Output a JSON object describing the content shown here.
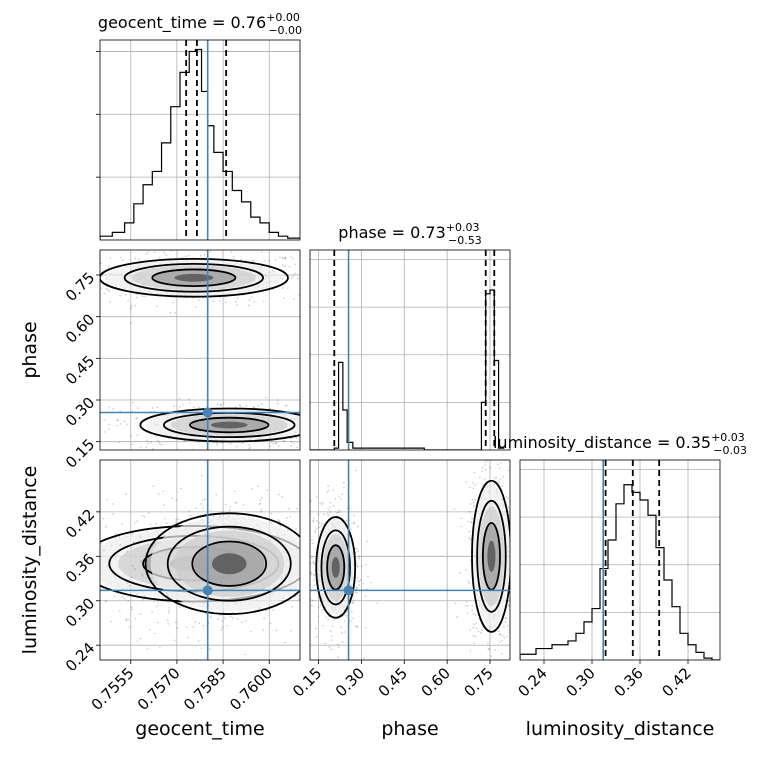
{
  "chart_data": {
    "type": "corner",
    "parameters": [
      "geocent_time",
      "phase",
      "luminosity_distance"
    ],
    "truths": {
      "geocent_time": 0.758,
      "phase": 0.255,
      "luminosity_distance": 0.314
    },
    "panels": [
      {
        "kind": "hist",
        "param": "geocent_time",
        "title": {
          "main": "geocent_time = 0.76",
          "sup": "+0.00",
          "sub": "−0.00"
        },
        "xlim": [
          0.7545,
          0.761
        ],
        "ylim": [
          0,
          1.05
        ],
        "quantiles": [
          0.7573,
          0.75765,
          0.7586
        ],
        "step_x": [
          0.7545,
          0.7549,
          0.7553,
          0.7556,
          0.7559,
          0.7562,
          0.7565,
          0.7568,
          0.7571,
          0.7574,
          0.7576,
          0.7578,
          0.758,
          0.7582,
          0.7585,
          0.7588,
          0.7591,
          0.7594,
          0.7597,
          0.76,
          0.7603,
          0.7606,
          0.761
        ],
        "step_y": [
          0.02,
          0.04,
          0.09,
          0.19,
          0.29,
          0.36,
          0.51,
          0.7,
          0.88,
          0.99,
          1.0,
          0.78,
          0.6,
          0.46,
          0.36,
          0.26,
          0.2,
          0.12,
          0.09,
          0.04,
          0.02,
          0.01
        ],
        "yticks": [
          0.0,
          0.33,
          0.66,
          0.99
        ]
      },
      {
        "kind": "2d",
        "x": "geocent_time",
        "y": "phase",
        "xlim": [
          0.7545,
          0.761
        ],
        "ylim": [
          0.12,
          0.84
        ],
        "yticks": [
          0.15,
          0.3,
          0.45,
          0.6,
          0.75
        ],
        "yticklabels": [
          "0.15",
          "0.30",
          "0.45",
          "0.60",
          "0.75"
        ],
        "ylabel": "phase",
        "blobs": [
          {
            "cx": 0.75755,
            "cy": 0.74,
            "rx": 0.0018,
            "ry": 0.04
          },
          {
            "cx": 0.7587,
            "cy": 0.21,
            "rx": 0.0017,
            "ry": 0.035
          }
        ]
      },
      {
        "kind": "hist",
        "param": "phase",
        "title": {
          "main": "phase = 0.73",
          "sup": "+0.03",
          "sub": "−0.53"
        },
        "xlim": [
          0.12,
          0.82
        ],
        "ylim": [
          0,
          1.05
        ],
        "quantiles": [
          0.205,
          0.735,
          0.765
        ],
        "step_x": [
          0.12,
          0.19,
          0.205,
          0.22,
          0.235,
          0.25,
          0.27,
          0.52,
          0.7,
          0.72,
          0.735,
          0.75,
          0.765,
          0.78,
          0.8
        ],
        "step_y": [
          0.0,
          0.0,
          0.01,
          0.46,
          0.21,
          0.04,
          0.01,
          0.0,
          0.0,
          0.25,
          0.82,
          0.84,
          0.47,
          0.01
        ]
      },
      {
        "kind": "2d",
        "x": "geocent_time",
        "y": "luminosity_distance",
        "xlim": [
          0.7545,
          0.761
        ],
        "ylim": [
          0.22,
          0.49
        ],
        "xticks": [
          0.7555,
          0.757,
          0.7585,
          0.76
        ],
        "xticklabels": [
          "0.7555",
          "0.7570",
          "0.7585",
          "0.7600"
        ],
        "yticks": [
          0.24,
          0.3,
          0.36,
          0.42
        ],
        "yticklabels": [
          "0.24",
          "0.30",
          "0.36",
          "0.42"
        ],
        "xlabel": "geocent_time",
        "ylabel": "luminosity_distance",
        "blobs": [
          {
            "cx": 0.75755,
            "cy": 0.35,
            "rx": 0.0022,
            "ry": 0.03
          },
          {
            "cx": 0.7587,
            "cy": 0.35,
            "rx": 0.0016,
            "ry": 0.04
          }
        ]
      },
      {
        "kind": "2d",
        "x": "phase",
        "y": "luminosity_distance",
        "xlim": [
          0.12,
          0.82
        ],
        "ylim": [
          0.22,
          0.49
        ],
        "xticks": [
          0.15,
          0.3,
          0.45,
          0.6,
          0.75
        ],
        "xticklabels": [
          "0.15",
          "0.30",
          "0.45",
          "0.60",
          "0.75"
        ],
        "xlabel": "phase",
        "blobs": [
          {
            "cx": 0.21,
            "cy": 0.345,
            "rx": 0.04,
            "ry": 0.04
          },
          {
            "cx": 0.755,
            "cy": 0.36,
            "rx": 0.04,
            "ry": 0.06
          }
        ]
      },
      {
        "kind": "hist",
        "param": "luminosity_distance",
        "title": {
          "main": "luminosity_distance = 0.35",
          "sup": "+0.03",
          "sub": "−0.03"
        },
        "xlim": [
          0.21,
          0.46
        ],
        "ylim": [
          0,
          1.05
        ],
        "xticks": [
          0.24,
          0.3,
          0.36,
          0.42
        ],
        "xticklabels": [
          "0.24",
          "0.30",
          "0.36",
          "0.42"
        ],
        "xlabel": "luminosity_distance",
        "quantiles": [
          0.317,
          0.351,
          0.384
        ],
        "step_x": [
          0.21,
          0.23,
          0.25,
          0.27,
          0.28,
          0.29,
          0.3,
          0.31,
          0.32,
          0.33,
          0.34,
          0.35,
          0.36,
          0.37,
          0.38,
          0.39,
          0.4,
          0.41,
          0.42,
          0.43,
          0.44,
          0.45,
          0.46
        ],
        "step_y": [
          0.03,
          0.06,
          0.08,
          0.1,
          0.14,
          0.2,
          0.27,
          0.48,
          0.63,
          0.82,
          0.92,
          0.88,
          0.84,
          0.76,
          0.59,
          0.42,
          0.28,
          0.14,
          0.08,
          0.04,
          0.01,
          0.0
        ]
      }
    ]
  }
}
